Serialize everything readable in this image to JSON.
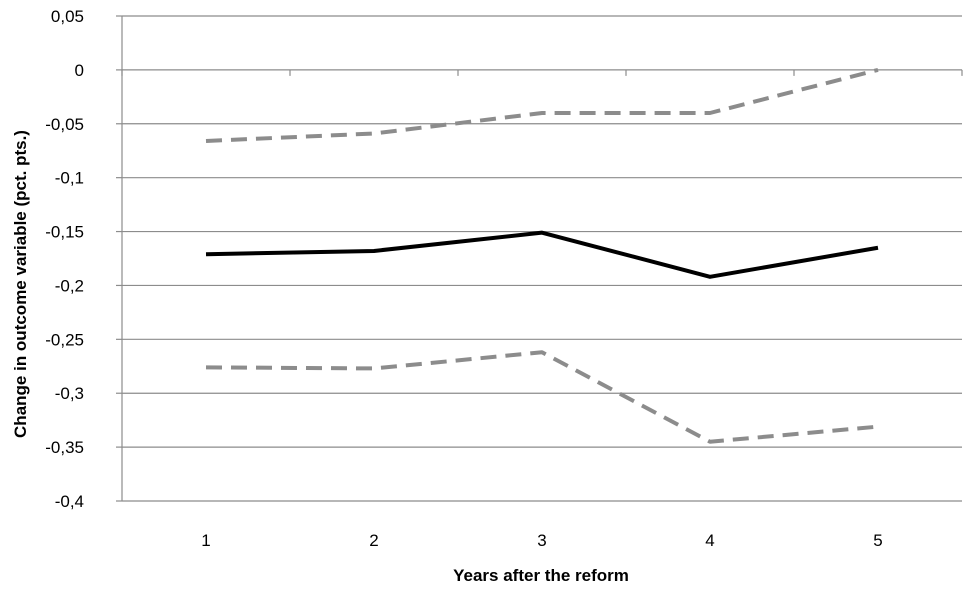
{
  "chart_data": {
    "type": "line",
    "title": "",
    "xlabel": "Years after the reform",
    "ylabel": "Change in outcome variable (pct. pts.)",
    "x": [
      "1",
      "2",
      "3",
      "4",
      "5"
    ],
    "ylim": [
      -0.4,
      0.05
    ],
    "yticks": [
      "0,05",
      "0",
      "-0,05",
      "-0,1",
      "-0,15",
      "-0,2",
      "-0,25",
      "-0,3",
      "-0,35",
      "-0,4"
    ],
    "grid": "horizontal",
    "legend": "none",
    "series": [
      {
        "style": "solid",
        "color": "#000000",
        "values": [
          -0.171,
          -0.168,
          -0.151,
          -0.192,
          -0.165
        ]
      },
      {
        "style": "dashed",
        "color": "#8c8c8c",
        "values": [
          -0.066,
          -0.059,
          -0.04,
          -0.04,
          0.0
        ]
      },
      {
        "style": "dashed",
        "color": "#8c8c8c",
        "values": [
          -0.276,
          -0.277,
          -0.262,
          -0.345,
          -0.331
        ]
      }
    ]
  }
}
